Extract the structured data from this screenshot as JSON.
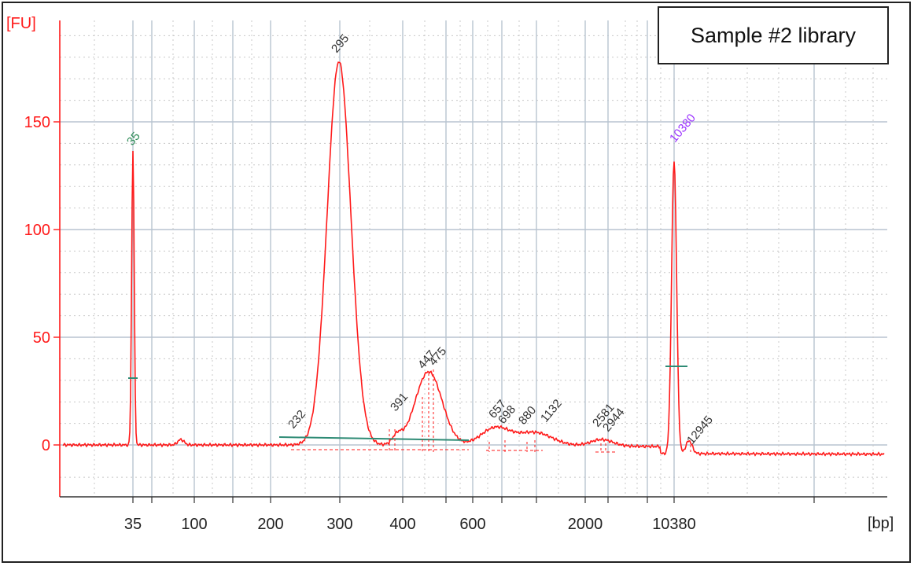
{
  "chart_data": {
    "type": "line",
    "title": "Sample #2 library",
    "y_unit": "[FU]",
    "x_unit": "[bp]",
    "ylim": [
      -18,
      198
    ],
    "y_ticks": [
      0,
      50,
      100,
      150
    ],
    "x_tick_labels": [
      "35",
      "100",
      "200",
      "300",
      "400",
      "600",
      "2000",
      "10380"
    ],
    "grid": true,
    "legend_placement": "top-right",
    "colors": {
      "trace": "#ff1a1a",
      "axis": "#ff1a1a",
      "marker_green": "#2e8b57",
      "marker_purple": "#9b30ff",
      "baseline": "#2e8b75",
      "label": "#333333"
    },
    "series": [
      {
        "values_note_points": [
          [
            35,
            0
          ],
          [
            35,
            137
          ],
          [
            35,
            0
          ],
          [
            100,
            2
          ],
          [
            300,
            178
          ],
          [
            391,
            8
          ],
          [
            447,
            34
          ],
          [
            475,
            30
          ],
          [
            657,
            8
          ],
          [
            690,
            7
          ],
          [
            880,
            6
          ],
          [
            1132,
            4
          ],
          [
            2581,
            3
          ],
          [
            2944,
            2
          ],
          [
            10380,
            136
          ],
          [
            12945,
            5
          ]
        ]
      }
    ],
    "peak_labels": [
      {
        "text": "35",
        "color": "green"
      },
      {
        "text": "295",
        "color": "grey"
      },
      {
        "text": "232",
        "color": "grey"
      },
      {
        "text": "391",
        "color": "grey"
      },
      {
        "text": "447",
        "color": "grey"
      },
      {
        "text": "475",
        "color": "grey"
      },
      {
        "text": "657",
        "color": "grey"
      },
      {
        "text": "698",
        "color": "grey"
      },
      {
        "text": "880",
        "color": "grey"
      },
      {
        "text": "1132",
        "color": "grey"
      },
      {
        "text": "2581",
        "color": "grey"
      },
      {
        "text": "2944",
        "color": "grey"
      },
      {
        "text": "10380",
        "color": "purple"
      },
      {
        "text": "12945",
        "color": "grey"
      }
    ]
  }
}
